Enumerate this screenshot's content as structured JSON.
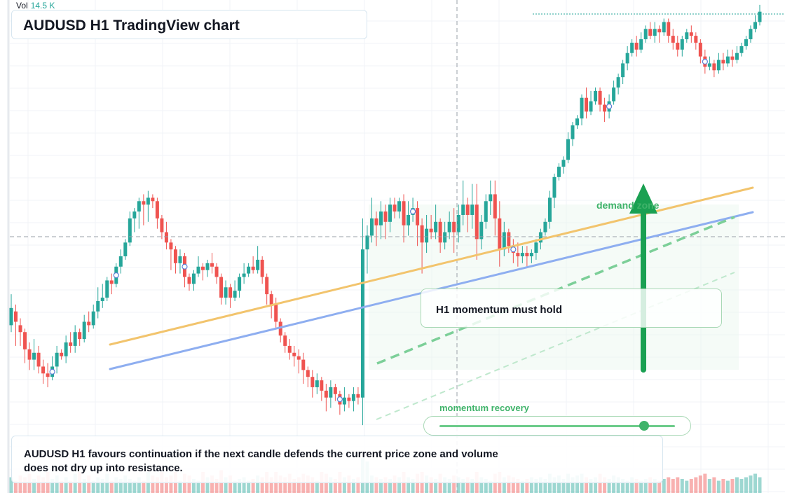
{
  "header": {
    "vol_label": "Vol",
    "vol_value": "14.5 K",
    "title": "AUDUSD H1 TradingView chart"
  },
  "annotations": {
    "zone_label": "demand zone",
    "note": "H1 momentum must hold",
    "slider_label": "momentum recovery",
    "summary": "AUDUSD H1 favours continuation if the next candle defends the current price zone and volume does not dry up into resistance."
  },
  "slider": {
    "value_fraction": 0.87
  },
  "colors": {
    "bull": "#26a69a",
    "bear": "#ef5350",
    "accent_green": "#3fb36a",
    "orange_trend": "#f2c46d",
    "blue_trend": "#8eaef0",
    "card_border": "#d7e6f0"
  },
  "chart_data": {
    "type": "candlestick",
    "symbol": "AUDUSD",
    "timeframe": "H1",
    "price_range": [
      0,
      100
    ],
    "volume_max": 100,
    "candles": [
      [
        30,
        35,
        39,
        28,
        45
      ],
      [
        34,
        31,
        36,
        24,
        35
      ],
      [
        30,
        28,
        32,
        24,
        50
      ],
      [
        28,
        23,
        29,
        19,
        45
      ],
      [
        23,
        20,
        25,
        17,
        55
      ],
      [
        20,
        22,
        26,
        17,
        40
      ],
      [
        22,
        18,
        24,
        16,
        50
      ],
      [
        18,
        16,
        20,
        13,
        45
      ],
      [
        16,
        15,
        19,
        12,
        60
      ],
      [
        15,
        18,
        21,
        14,
        40
      ],
      [
        18,
        22,
        24,
        16,
        50
      ],
      [
        22,
        21,
        23,
        20,
        35
      ],
      [
        21,
        25,
        27,
        19,
        45
      ],
      [
        25,
        24,
        28,
        22,
        35
      ],
      [
        24,
        28,
        30,
        22,
        55
      ],
      [
        28,
        26,
        29,
        24,
        60
      ],
      [
        26,
        31,
        33,
        25,
        40
      ],
      [
        31,
        30,
        34,
        28,
        50
      ],
      [
        30,
        34,
        36,
        29,
        35
      ],
      [
        34,
        37,
        41,
        32,
        45
      ],
      [
        37,
        38,
        42,
        35,
        40
      ],
      [
        38,
        43,
        44,
        37,
        55
      ],
      [
        43,
        42,
        45,
        39,
        35
      ],
      [
        42,
        47,
        48,
        41,
        45
      ],
      [
        47,
        50,
        52,
        45,
        40
      ],
      [
        50,
        54,
        55,
        49,
        50
      ],
      [
        54,
        61,
        63,
        53,
        40
      ],
      [
        61,
        63,
        64,
        57,
        35
      ],
      [
        63,
        66,
        67,
        58,
        45
      ],
      [
        66,
        65,
        68,
        59,
        35
      ],
      [
        65,
        67,
        69,
        60,
        60
      ],
      [
        67,
        66,
        68,
        64,
        50
      ],
      [
        66,
        61,
        67,
        58,
        45
      ],
      [
        61,
        57,
        62,
        55,
        60
      ],
      [
        57,
        54,
        60,
        52,
        45
      ],
      [
        54,
        52,
        55,
        46,
        50
      ],
      [
        52,
        48,
        53,
        45,
        60
      ],
      [
        48,
        50,
        52,
        45,
        35
      ],
      [
        50,
        44,
        51,
        41,
        55
      ],
      [
        44,
        42,
        45,
        40,
        50
      ],
      [
        42,
        45,
        46,
        40,
        40
      ],
      [
        45,
        47,
        50,
        44,
        35
      ],
      [
        47,
        46,
        48,
        43,
        60
      ],
      [
        46,
        48,
        49,
        44,
        45
      ],
      [
        48,
        47,
        51,
        45,
        50
      ],
      [
        47,
        44,
        48,
        42,
        40
      ],
      [
        44,
        38,
        45,
        36,
        65
      ],
      [
        38,
        41,
        43,
        36,
        45
      ],
      [
        41,
        38,
        42,
        35,
        50
      ],
      [
        38,
        40,
        43,
        37,
        35
      ],
      [
        40,
        44,
        45,
        38,
        40
      ],
      [
        44,
        45,
        48,
        42,
        45
      ],
      [
        45,
        47,
        48,
        44,
        35
      ],
      [
        47,
        46,
        50,
        45,
        40
      ],
      [
        46,
        49,
        53,
        45,
        50
      ],
      [
        49,
        44,
        50,
        42,
        45
      ],
      [
        44,
        39,
        45,
        36,
        60
      ],
      [
        39,
        36,
        40,
        32,
        45
      ],
      [
        36,
        31,
        38,
        29,
        60
      ],
      [
        31,
        27,
        32,
        25,
        50
      ],
      [
        27,
        24,
        28,
        22,
        45
      ],
      [
        24,
        22,
        26,
        20,
        55
      ],
      [
        22,
        21,
        24,
        18,
        40
      ],
      [
        21,
        20,
        23,
        16,
        45
      ],
      [
        20,
        17,
        22,
        13,
        55
      ],
      [
        17,
        15,
        18,
        12,
        50
      ],
      [
        15,
        12,
        17,
        9,
        45
      ],
      [
        12,
        14,
        16,
        10,
        35
      ],
      [
        14,
        11,
        15,
        8,
        60
      ],
      [
        11,
        9,
        13,
        5,
        55
      ],
      [
        9,
        12,
        14,
        6,
        45
      ],
      [
        12,
        10,
        13,
        8,
        40
      ],
      [
        10,
        7,
        11,
        4,
        60
      ],
      [
        7,
        9,
        12,
        5,
        45
      ],
      [
        9,
        8,
        10,
        6,
        50
      ],
      [
        8,
        10,
        12,
        5,
        40
      ],
      [
        10,
        9,
        12,
        7,
        45
      ],
      [
        9,
        52,
        61,
        1,
        100
      ],
      [
        52,
        56,
        59,
        45,
        90
      ],
      [
        56,
        61,
        67,
        54,
        50
      ],
      [
        61,
        59,
        63,
        53,
        45
      ],
      [
        59,
        63,
        66,
        55,
        40
      ],
      [
        63,
        60,
        65,
        55,
        45
      ],
      [
        60,
        65,
        67,
        57,
        40
      ],
      [
        65,
        63,
        67,
        61,
        50
      ],
      [
        63,
        66,
        67,
        61,
        45
      ],
      [
        66,
        59,
        68,
        54,
        60
      ],
      [
        59,
        62,
        66,
        56,
        45
      ],
      [
        62,
        64,
        67,
        60,
        40
      ],
      [
        64,
        59,
        66,
        53,
        55
      ],
      [
        59,
        54,
        61,
        45,
        60
      ],
      [
        54,
        58,
        62,
        51,
        50
      ],
      [
        58,
        57,
        62,
        55,
        45
      ],
      [
        57,
        60,
        65,
        55,
        40
      ],
      [
        60,
        54,
        61,
        51,
        55
      ],
      [
        54,
        57,
        60,
        52,
        45
      ],
      [
        57,
        60,
        63,
        55,
        40
      ],
      [
        60,
        57,
        64,
        51,
        50
      ],
      [
        57,
        62,
        65,
        54,
        45
      ],
      [
        62,
        65,
        72,
        59,
        40
      ],
      [
        65,
        62,
        67,
        57,
        45
      ],
      [
        62,
        65,
        71,
        58,
        40
      ],
      [
        65,
        55,
        71,
        49,
        60
      ],
      [
        55,
        60,
        62,
        52,
        45
      ],
      [
        60,
        66,
        68,
        58,
        40
      ],
      [
        66,
        68,
        72,
        62,
        35
      ],
      [
        68,
        61,
        72,
        56,
        55
      ],
      [
        61,
        52,
        66,
        47,
        60
      ],
      [
        52,
        57,
        60,
        50,
        45
      ],
      [
        57,
        53,
        58,
        51,
        50
      ],
      [
        53,
        51,
        55,
        48,
        45
      ],
      [
        51,
        50,
        54,
        47,
        40
      ],
      [
        50,
        51,
        53,
        48,
        35
      ],
      [
        51,
        50,
        53,
        47,
        40
      ],
      [
        50,
        51,
        52,
        48,
        45
      ],
      [
        51,
        54,
        55,
        49,
        40
      ],
      [
        54,
        57,
        58,
        52,
        45
      ],
      [
        57,
        60,
        61,
        56,
        40
      ],
      [
        60,
        67,
        69,
        58,
        55
      ],
      [
        67,
        73,
        74,
        64,
        45
      ],
      [
        73,
        76,
        77,
        72,
        50
      ],
      [
        76,
        78,
        79,
        74,
        40
      ],
      [
        78,
        84,
        86,
        77,
        55
      ],
      [
        84,
        88,
        89,
        82,
        45
      ],
      [
        88,
        90,
        91,
        87,
        50
      ],
      [
        90,
        96,
        97,
        88,
        55
      ],
      [
        96,
        92,
        99,
        90,
        45
      ],
      [
        92,
        95,
        98,
        91,
        40
      ],
      [
        95,
        98,
        99,
        94,
        45
      ],
      [
        98,
        94,
        99,
        92,
        55
      ],
      [
        94,
        92,
        96,
        89,
        45
      ],
      [
        92,
        95,
        97,
        90,
        40
      ],
      [
        95,
        99,
        101,
        94,
        50
      ],
      [
        99,
        102,
        103,
        97,
        45
      ],
      [
        102,
        106,
        107,
        100,
        40
      ],
      [
        106,
        109,
        111,
        104,
        35
      ],
      [
        109,
        112,
        113,
        108,
        45
      ],
      [
        112,
        110,
        114,
        108,
        40
      ],
      [
        110,
        113,
        115,
        109,
        35
      ],
      [
        113,
        116,
        117,
        112,
        40
      ],
      [
        116,
        114,
        118,
        113,
        45
      ],
      [
        114,
        116,
        118,
        112,
        40
      ],
      [
        116,
        115,
        117,
        112,
        35
      ],
      [
        115,
        118,
        119,
        114,
        40
      ],
      [
        118,
        114,
        119,
        112,
        45
      ],
      [
        114,
        112,
        116,
        110,
        40
      ],
      [
        112,
        110,
        114,
        108,
        45
      ],
      [
        110,
        113,
        114,
        108,
        40
      ],
      [
        113,
        115,
        116,
        112,
        35
      ],
      [
        115,
        114,
        117,
        112,
        40
      ],
      [
        114,
        112,
        115,
        110,
        45
      ],
      [
        112,
        108,
        113,
        106,
        50
      ],
      [
        108,
        105,
        110,
        103,
        55
      ],
      [
        105,
        106,
        108,
        104,
        40
      ],
      [
        106,
        104,
        107,
        102,
        45
      ],
      [
        104,
        107,
        109,
        103,
        35
      ],
      [
        107,
        106,
        109,
        104,
        40
      ],
      [
        106,
        108,
        110,
        105,
        35
      ],
      [
        108,
        107,
        110,
        105,
        40
      ],
      [
        107,
        109,
        111,
        106,
        45
      ],
      [
        109,
        111,
        112,
        108,
        40
      ],
      [
        111,
        113,
        114,
        110,
        45
      ],
      [
        113,
        116,
        117,
        112,
        50
      ],
      [
        116,
        118,
        120,
        115,
        55
      ],
      [
        118,
        121,
        123,
        117,
        45
      ]
    ],
    "trendlines": [
      "orange",
      "blue",
      "green dashed",
      "green dashed light"
    ],
    "grid": true
  }
}
